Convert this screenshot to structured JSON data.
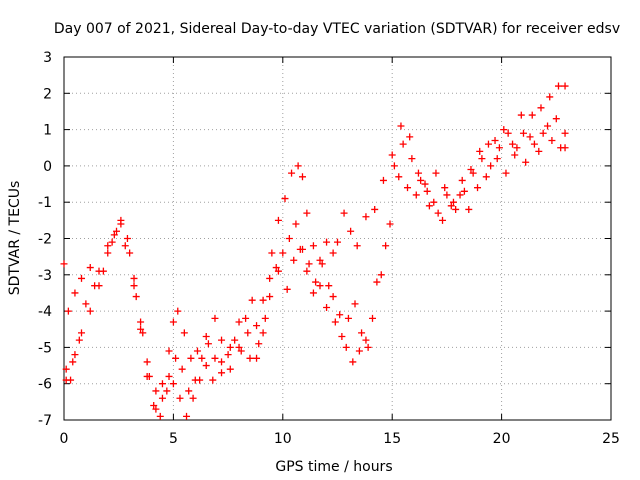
{
  "chart_data": {
    "type": "scatter",
    "title": "Day 007 of 2021, Sidereal Day-to-day VTEC variation (SDTVAR) for receiver edsv",
    "xlabel": "GPS time / hours",
    "ylabel": "SDTVAR / TECUs",
    "xlim": [
      0,
      25
    ],
    "ylim": [
      -7,
      3
    ],
    "xticks": [
      "0",
      "5",
      "10",
      "15",
      "20",
      "25"
    ],
    "yticks": [
      "-7",
      "-6",
      "-5",
      "-4",
      "-3",
      "-2",
      "-1",
      "0",
      "1",
      "2",
      "3"
    ],
    "grid": true,
    "marker": "+",
    "series": [
      {
        "color": "#ff0000",
        "tracks": [
          [
            [
              0.0,
              -2.7
            ],
            [
              0.1,
              -5.6
            ],
            [
              0.3,
              -5.9
            ],
            [
              0.5,
              -5.2
            ],
            [
              0.8,
              -4.6
            ],
            [
              1.2,
              -4.0
            ],
            [
              1.6,
              -3.3
            ],
            [
              2.0,
              -2.4
            ],
            [
              2.4,
              -1.8
            ],
            [
              2.8,
              -2.2
            ],
            [
              3.2,
              -3.3
            ],
            [
              3.5,
              -4.3
            ],
            [
              3.8,
              -5.4
            ],
            [
              4.2,
              -6.2
            ],
            [
              4.5,
              -6.0
            ],
            [
              4.8,
              -5.1
            ],
            [
              5.0,
              -4.3
            ],
            [
              5.2,
              -4.0
            ],
            [
              5.5,
              -4.6
            ],
            [
              5.8,
              -5.3
            ],
            [
              6.1,
              -5.1
            ],
            [
              6.5,
              -4.7
            ],
            [
              6.9,
              -4.2
            ],
            [
              7.2,
              -4.8
            ],
            [
              7.6,
              -5.6
            ],
            [
              8.0,
              -5.0
            ],
            [
              8.3,
              -4.2
            ],
            [
              8.6,
              -3.7
            ],
            [
              8.9,
              -4.9
            ],
            [
              9.2,
              -4.2
            ],
            [
              9.5,
              -2.4
            ],
            [
              9.8,
              -1.5
            ],
            [
              10.1,
              -0.9
            ],
            [
              10.4,
              -0.2
            ],
            [
              10.7,
              0.0
            ],
            [
              10.9,
              -0.3
            ],
            [
              11.1,
              -1.3
            ],
            [
              11.4,
              -2.2
            ],
            [
              11.7,
              -2.6
            ],
            [
              12.0,
              -2.1
            ],
            [
              12.3,
              -2.4
            ],
            [
              12.5,
              -2.1
            ],
            [
              12.8,
              -1.3
            ],
            [
              13.1,
              -1.8
            ],
            [
              13.4,
              -2.2
            ],
            [
              13.8,
              -1.4
            ],
            [
              14.2,
              -1.2
            ],
            [
              14.6,
              -0.4
            ],
            [
              15.0,
              0.3
            ],
            [
              15.4,
              1.1
            ],
            [
              15.8,
              0.8
            ],
            [
              16.2,
              -0.2
            ],
            [
              16.6,
              -0.7
            ],
            [
              17.0,
              -0.2
            ],
            [
              17.4,
              -0.6
            ],
            [
              17.8,
              -1.0
            ],
            [
              18.2,
              -0.4
            ],
            [
              18.6,
              -0.1
            ],
            [
              19.0,
              0.4
            ],
            [
              19.4,
              0.6
            ],
            [
              19.8,
              0.2
            ],
            [
              20.2,
              -0.2
            ],
            [
              20.6,
              0.3
            ],
            [
              21.0,
              0.9
            ],
            [
              21.4,
              1.4
            ],
            [
              21.8,
              1.6
            ],
            [
              22.2,
              1.9
            ],
            [
              22.6,
              2.2
            ],
            [
              22.9,
              2.2
            ]
          ],
          [
            [
              0.1,
              -5.9
            ],
            [
              0.4,
              -5.4
            ],
            [
              0.7,
              -4.8
            ],
            [
              1.0,
              -3.8
            ],
            [
              1.4,
              -3.3
            ],
            [
              1.8,
              -2.9
            ],
            [
              2.2,
              -2.1
            ],
            [
              2.6,
              -1.6
            ],
            [
              3.0,
              -2.4
            ],
            [
              3.3,
              -3.6
            ],
            [
              3.6,
              -4.6
            ],
            [
              3.9,
              -5.8
            ],
            [
              4.2,
              -6.7
            ],
            [
              4.5,
              -6.4
            ],
            [
              4.8,
              -5.8
            ],
            [
              5.1,
              -5.3
            ],
            [
              5.4,
              -5.6
            ],
            [
              5.7,
              -6.2
            ],
            [
              6.0,
              -5.9
            ],
            [
              6.3,
              -5.3
            ],
            [
              6.6,
              -4.9
            ],
            [
              6.9,
              -5.3
            ],
            [
              7.2,
              -5.7
            ],
            [
              7.5,
              -5.2
            ],
            [
              7.8,
              -4.8
            ],
            [
              8.1,
              -5.1
            ],
            [
              8.5,
              -5.3
            ],
            [
              8.8,
              -4.4
            ],
            [
              9.1,
              -3.7
            ],
            [
              9.4,
              -3.1
            ],
            [
              9.7,
              -2.8
            ],
            [
              10.0,
              -2.4
            ],
            [
              10.3,
              -2.0
            ],
            [
              10.6,
              -1.6
            ],
            [
              10.9,
              -2.3
            ],
            [
              11.2,
              -2.7
            ],
            [
              11.5,
              -3.2
            ],
            [
              11.8,
              -2.7
            ],
            [
              12.1,
              -3.3
            ],
            [
              12.4,
              -4.3
            ],
            [
              12.7,
              -4.7
            ],
            [
              13.0,
              -4.2
            ],
            [
              13.3,
              -3.8
            ],
            [
              13.6,
              -4.6
            ],
            [
              13.9,
              -5.0
            ],
            [
              14.3,
              -3.2
            ],
            [
              14.7,
              -2.2
            ],
            [
              15.1,
              0.0
            ],
            [
              15.5,
              0.6
            ],
            [
              15.9,
              0.2
            ],
            [
              16.3,
              -0.4
            ],
            [
              16.7,
              -1.1
            ],
            [
              17.1,
              -1.3
            ],
            [
              17.5,
              -0.8
            ],
            [
              17.9,
              -1.2
            ],
            [
              18.3,
              -0.7
            ],
            [
              18.7,
              -0.2
            ],
            [
              19.1,
              0.2
            ],
            [
              19.5,
              0.0
            ],
            [
              19.9,
              0.5
            ],
            [
              20.3,
              0.9
            ],
            [
              20.7,
              0.5
            ],
            [
              21.1,
              0.1
            ],
            [
              21.5,
              0.6
            ],
            [
              21.9,
              0.9
            ],
            [
              22.3,
              0.7
            ],
            [
              22.7,
              0.5
            ],
            [
              22.9,
              0.5
            ]
          ],
          [
            [
              0.2,
              -4.0
            ],
            [
              0.5,
              -3.5
            ],
            [
              0.8,
              -3.1
            ],
            [
              1.2,
              -2.8
            ],
            [
              1.6,
              -2.9
            ],
            [
              2.0,
              -2.2
            ],
            [
              2.3,
              -1.9
            ],
            [
              2.6,
              -1.5
            ],
            [
              2.9,
              -2.0
            ],
            [
              3.2,
              -3.1
            ],
            [
              3.5,
              -4.5
            ],
            [
              3.8,
              -5.8
            ],
            [
              4.1,
              -6.6
            ],
            [
              4.4,
              -6.9
            ],
            [
              4.7,
              -6.2
            ],
            [
              5.0,
              -6.0
            ],
            [
              5.3,
              -6.4
            ],
            [
              5.6,
              -6.9
            ],
            [
              5.9,
              -6.4
            ],
            [
              6.2,
              -5.9
            ],
            [
              6.5,
              -5.5
            ],
            [
              6.8,
              -5.9
            ],
            [
              7.2,
              -5.4
            ],
            [
              7.6,
              -5.0
            ],
            [
              8.0,
              -4.3
            ],
            [
              8.4,
              -4.6
            ],
            [
              8.8,
              -5.3
            ],
            [
              9.1,
              -4.6
            ],
            [
              9.4,
              -3.6
            ],
            [
              9.8,
              -2.9
            ],
            [
              10.2,
              -3.4
            ],
            [
              10.5,
              -2.6
            ],
            [
              10.8,
              -2.3
            ],
            [
              11.1,
              -2.9
            ],
            [
              11.4,
              -3.5
            ],
            [
              11.7,
              -3.3
            ],
            [
              12.0,
              -3.9
            ],
            [
              12.3,
              -3.6
            ],
            [
              12.6,
              -4.1
            ],
            [
              12.9,
              -5.0
            ],
            [
              13.2,
              -5.4
            ],
            [
              13.5,
              -5.1
            ],
            [
              13.8,
              -4.8
            ],
            [
              14.1,
              -4.2
            ],
            [
              14.5,
              -3.0
            ],
            [
              14.9,
              -1.6
            ],
            [
              15.3,
              -0.3
            ],
            [
              15.7,
              -0.6
            ],
            [
              16.1,
              -0.8
            ],
            [
              16.5,
              -0.5
            ],
            [
              16.9,
              -1.0
            ],
            [
              17.3,
              -1.5
            ],
            [
              17.7,
              -1.1
            ],
            [
              18.1,
              -0.8
            ],
            [
              18.5,
              -1.2
            ],
            [
              18.9,
              -0.6
            ],
            [
              19.3,
              -0.3
            ],
            [
              19.7,
              0.7
            ],
            [
              20.1,
              1.0
            ],
            [
              20.5,
              0.6
            ],
            [
              20.9,
              1.4
            ],
            [
              21.3,
              0.8
            ],
            [
              21.7,
              0.4
            ],
            [
              22.1,
              1.1
            ],
            [
              22.5,
              1.3
            ],
            [
              22.9,
              0.9
            ]
          ]
        ]
      }
    ]
  }
}
